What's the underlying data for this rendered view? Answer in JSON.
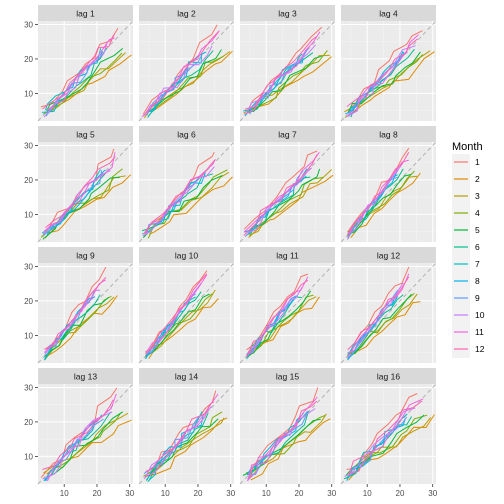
{
  "chart_data": {
    "type": "line",
    "facets": [
      "lag 1",
      "lag 2",
      "lag 3",
      "lag 4",
      "lag 5",
      "lag 6",
      "lag 7",
      "lag 8",
      "lag 9",
      "lag 10",
      "lag 11",
      "lag 12",
      "lag 13",
      "lag 14",
      "lag 15",
      "lag 16"
    ],
    "xlim": [
      2,
      31
    ],
    "ylim": [
      2,
      31
    ],
    "x_ticks": [
      10,
      20,
      30
    ],
    "y_ticks": [
      10,
      20,
      30
    ],
    "reference_line": "y = x (dashed grey)",
    "grid": true,
    "legend": {
      "title": "Month",
      "placement": "right",
      "entries": [
        "1",
        "2",
        "3",
        "4",
        "5",
        "6",
        "7",
        "8",
        "9",
        "10",
        "11",
        "12"
      ],
      "colors": [
        "#F8766D",
        "#DE8C00",
        "#B79F00",
        "#7CAE00",
        "#00BA38",
        "#00C08B",
        "#00BFC4",
        "#00B4F0",
        "#619CFF",
        "#C77CFF",
        "#F564E3",
        "#FF64B0"
      ]
    },
    "month_ranges": [
      {
        "month": "1",
        "x": [
          4,
          26
        ],
        "y": [
          5,
          29
        ]
      },
      {
        "month": "2",
        "x": [
          5,
          30
        ],
        "y": [
          4,
          21
        ]
      },
      {
        "month": "3",
        "x": [
          4,
          29
        ],
        "y": [
          4,
          22
        ]
      },
      {
        "month": "4",
        "x": [
          4,
          28
        ],
        "y": [
          4,
          22
        ]
      },
      {
        "month": "5",
        "x": [
          4,
          27
        ],
        "y": [
          4,
          22
        ]
      },
      {
        "month": "6",
        "x": [
          4,
          24
        ],
        "y": [
          4,
          22
        ]
      },
      {
        "month": "7",
        "x": [
          4,
          22
        ],
        "y": [
          4,
          22
        ]
      },
      {
        "month": "8",
        "x": [
          4,
          22
        ],
        "y": [
          4,
          22
        ]
      },
      {
        "month": "9",
        "x": [
          4,
          22
        ],
        "y": [
          4,
          22
        ]
      },
      {
        "month": "10",
        "x": [
          4,
          24
        ],
        "y": [
          4,
          24
        ]
      },
      {
        "month": "11",
        "x": [
          4,
          26
        ],
        "y": [
          4,
          27
        ]
      },
      {
        "month": "12",
        "x": [
          4,
          26
        ],
        "y": [
          5,
          27
        ]
      }
    ]
  }
}
